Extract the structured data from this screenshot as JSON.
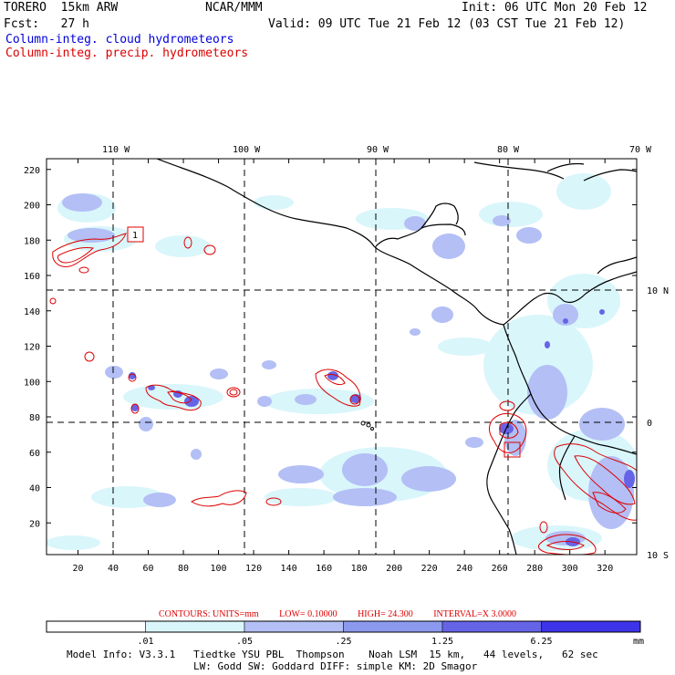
{
  "header": {
    "model": "TORERO  15km ARW",
    "org": "NCAR/MMM",
    "init": "Init: 06 UTC Mon 20 Feb 12",
    "fcst": "Fcst:   27 h",
    "valid": "Valid: 09 UTC Tue 21 Feb 12 (03 CST Tue 21 Feb 12)"
  },
  "legend": {
    "cloud": "Column-integ. cloud hydrometeors",
    "precip": "Column-integ. precip. hydrometeors"
  },
  "axes": {
    "lon_labels": [
      "110 W",
      "100 W",
      "90 W",
      "80 W",
      "70 W"
    ],
    "lat_labels": [
      "10 N",
      "0",
      "10 S"
    ],
    "y_ticks": [
      "20",
      "40",
      "60",
      "80",
      "100",
      "120",
      "140",
      "160",
      "180",
      "200",
      "220"
    ],
    "x_ticks": [
      "20",
      "40",
      "60",
      "80",
      "100",
      "120",
      "140",
      "160",
      "180",
      "200",
      "220",
      "240",
      "260",
      "280",
      "300",
      "320"
    ]
  },
  "contour_info": {
    "units": "CONTOURS:  UNITS=mm",
    "low": "LOW= 0.10000",
    "high": "HIGH=  24.300",
    "interval": "INTERVAL=X  3.0000"
  },
  "colorbar": {
    "labels": [
      ".01",
      ".05",
      ".25",
      "1.25",
      "6.25",
      "mm"
    ],
    "colors": [
      "#ffffff",
      "#d9f6fb",
      "#b3bff5",
      "#8b9aef",
      "#6664e6",
      "#3d33e8",
      "#1a0ae6"
    ]
  },
  "model_info": {
    "line1": "Model Info: V3.3.1   Tiedtke YSU PBL  Thompson    Noah LSM  15 km,   44 levels,   62 sec",
    "line2": "LW: Godd SW: Goddard DIFF: simple KM: 2D Smagor"
  },
  "map_labels": {
    "box1": "1"
  }
}
